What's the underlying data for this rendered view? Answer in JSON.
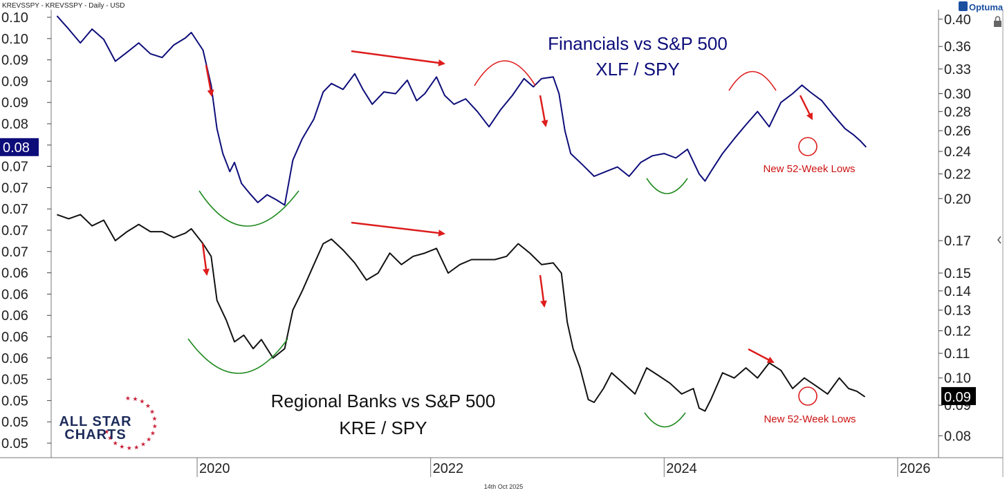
{
  "header": {
    "symbol_line": "KREVSSPY - KREVSSPY - Daily - USD",
    "brand": "Optuma"
  },
  "footer": {
    "date": "14th Oct 2025"
  },
  "logo": {
    "line1": "ALL STAR",
    "line2": "CHARTS"
  },
  "colors": {
    "financials": "#0d0d7a",
    "regional": "#111111",
    "arrow": "#dd1c1c",
    "arc_green": "#1f8a1f",
    "arc_red": "#dd1c1c"
  },
  "chart_data": {
    "type": "line",
    "x_ticks": [
      "2020",
      "2022",
      "2024",
      "2026"
    ],
    "x_domain": [
      2018.75,
      2026.35
    ],
    "left_axis": {
      "ticks": [
        "0.10",
        "0.10",
        "0.09",
        "0.09",
        "0.09",
        "0.08",
        "0.08",
        "0.07",
        "0.07",
        "0.07",
        "0.07",
        "0.07",
        "0.06",
        "0.06",
        "0.06",
        "0.06",
        "0.06",
        "0.05",
        "0.05",
        "0.05",
        "0.05"
      ],
      "highlight": "0.08"
    },
    "right_axis": {
      "scale": "log",
      "ticks": [
        0.4,
        0.36,
        0.33,
        0.3,
        0.28,
        0.26,
        0.24,
        0.22,
        0.2,
        0.17,
        0.15,
        0.14,
        0.13,
        0.12,
        0.11,
        0.1,
        0.09,
        0.08
      ],
      "tick_labels": [
        "0.40",
        "0.36",
        "0.33",
        "0.30",
        "0.28",
        "0.26",
        "0.24",
        "0.22",
        "0.20",
        "0.17",
        "0.15",
        "0.14",
        "0.13",
        "0.12",
        "0.11",
        "0.10",
        "0.09",
        "0.08"
      ],
      "highlight": "0.09",
      "ylim": [
        0.0735,
        0.415
      ]
    },
    "series": [
      {
        "key": "financials",
        "points": [
          [
            2018.8,
            0.405
          ],
          [
            2018.9,
            0.385
          ],
          [
            2019.0,
            0.365
          ],
          [
            2019.1,
            0.385
          ],
          [
            2019.2,
            0.37
          ],
          [
            2019.3,
            0.34
          ],
          [
            2019.4,
            0.352
          ],
          [
            2019.5,
            0.365
          ],
          [
            2019.6,
            0.35
          ],
          [
            2019.7,
            0.345
          ],
          [
            2019.8,
            0.362
          ],
          [
            2019.9,
            0.372
          ],
          [
            2019.95,
            0.38
          ],
          [
            2020.05,
            0.355
          ],
          [
            2020.12,
            0.31
          ],
          [
            2020.17,
            0.262
          ],
          [
            2020.22,
            0.238
          ],
          [
            2020.28,
            0.222
          ],
          [
            2020.32,
            0.23
          ],
          [
            2020.38,
            0.212
          ],
          [
            2020.45,
            0.204
          ],
          [
            2020.52,
            0.197
          ],
          [
            2020.6,
            0.203
          ],
          [
            2020.68,
            0.199
          ],
          [
            2020.75,
            0.195
          ],
          [
            2020.82,
            0.232
          ],
          [
            2020.9,
            0.252
          ],
          [
            2021.0,
            0.272
          ],
          [
            2021.08,
            0.302
          ],
          [
            2021.15,
            0.312
          ],
          [
            2021.25,
            0.305
          ],
          [
            2021.35,
            0.324
          ],
          [
            2021.42,
            0.305
          ],
          [
            2021.5,
            0.288
          ],
          [
            2021.6,
            0.302
          ],
          [
            2021.7,
            0.3
          ],
          [
            2021.8,
            0.316
          ],
          [
            2021.88,
            0.292
          ],
          [
            2021.95,
            0.3
          ],
          [
            2022.05,
            0.32
          ],
          [
            2022.12,
            0.298
          ],
          [
            2022.2,
            0.288
          ],
          [
            2022.3,
            0.294
          ],
          [
            2022.4,
            0.28
          ],
          [
            2022.5,
            0.264
          ],
          [
            2022.6,
            0.282
          ],
          [
            2022.7,
            0.298
          ],
          [
            2022.8,
            0.318
          ],
          [
            2022.88,
            0.308
          ],
          [
            2022.95,
            0.318
          ],
          [
            2023.05,
            0.32
          ],
          [
            2023.1,
            0.3
          ],
          [
            2023.15,
            0.26
          ],
          [
            2023.2,
            0.238
          ],
          [
            2023.3,
            0.228
          ],
          [
            2023.4,
            0.218
          ],
          [
            2023.5,
            0.222
          ],
          [
            2023.6,
            0.226
          ],
          [
            2023.7,
            0.218
          ],
          [
            2023.8,
            0.23
          ],
          [
            2023.9,
            0.236
          ],
          [
            2024.0,
            0.238
          ],
          [
            2024.1,
            0.234
          ],
          [
            2024.2,
            0.242
          ],
          [
            2024.3,
            0.22
          ],
          [
            2024.35,
            0.214
          ],
          [
            2024.4,
            0.222
          ],
          [
            2024.5,
            0.238
          ],
          [
            2024.6,
            0.252
          ],
          [
            2024.7,
            0.266
          ],
          [
            2024.8,
            0.28
          ],
          [
            2024.9,
            0.264
          ],
          [
            2025.0,
            0.29
          ],
          [
            2025.1,
            0.3
          ],
          [
            2025.18,
            0.31
          ],
          [
            2025.25,
            0.302
          ],
          [
            2025.35,
            0.292
          ],
          [
            2025.45,
            0.276
          ],
          [
            2025.55,
            0.262
          ],
          [
            2025.62,
            0.256
          ],
          [
            2025.68,
            0.25
          ],
          [
            2025.73,
            0.244
          ]
        ]
      },
      {
        "key": "regional",
        "points": [
          [
            2018.8,
            0.188
          ],
          [
            2018.9,
            0.185
          ],
          [
            2019.0,
            0.188
          ],
          [
            2019.1,
            0.18
          ],
          [
            2019.2,
            0.184
          ],
          [
            2019.3,
            0.17
          ],
          [
            2019.4,
            0.176
          ],
          [
            2019.5,
            0.181
          ],
          [
            2019.6,
            0.176
          ],
          [
            2019.7,
            0.176
          ],
          [
            2019.8,
            0.172
          ],
          [
            2019.9,
            0.175
          ],
          [
            2019.95,
            0.178
          ],
          [
            2020.05,
            0.168
          ],
          [
            2020.12,
            0.16
          ],
          [
            2020.17,
            0.135
          ],
          [
            2020.25,
            0.125
          ],
          [
            2020.32,
            0.115
          ],
          [
            2020.4,
            0.118
          ],
          [
            2020.48,
            0.112
          ],
          [
            2020.55,
            0.116
          ],
          [
            2020.65,
            0.108
          ],
          [
            2020.75,
            0.112
          ],
          [
            2020.82,
            0.13
          ],
          [
            2020.9,
            0.14
          ],
          [
            2021.0,
            0.155
          ],
          [
            2021.08,
            0.168
          ],
          [
            2021.15,
            0.171
          ],
          [
            2021.25,
            0.164
          ],
          [
            2021.35,
            0.156
          ],
          [
            2021.45,
            0.146
          ],
          [
            2021.55,
            0.15
          ],
          [
            2021.65,
            0.162
          ],
          [
            2021.75,
            0.155
          ],
          [
            2021.85,
            0.16
          ],
          [
            2021.95,
            0.162
          ],
          [
            2022.05,
            0.165
          ],
          [
            2022.15,
            0.15
          ],
          [
            2022.25,
            0.155
          ],
          [
            2022.35,
            0.158
          ],
          [
            2022.45,
            0.158
          ],
          [
            2022.55,
            0.158
          ],
          [
            2022.65,
            0.16
          ],
          [
            2022.75,
            0.168
          ],
          [
            2022.85,
            0.162
          ],
          [
            2022.95,
            0.155
          ],
          [
            2023.05,
            0.156
          ],
          [
            2023.12,
            0.15
          ],
          [
            2023.17,
            0.124
          ],
          [
            2023.22,
            0.112
          ],
          [
            2023.28,
            0.104
          ],
          [
            2023.35,
            0.092
          ],
          [
            2023.4,
            0.091
          ],
          [
            2023.48,
            0.096
          ],
          [
            2023.55,
            0.102
          ],
          [
            2023.65,
            0.098
          ],
          [
            2023.75,
            0.094
          ],
          [
            2023.85,
            0.104
          ],
          [
            2023.95,
            0.101
          ],
          [
            2024.05,
            0.098
          ],
          [
            2024.15,
            0.094
          ],
          [
            2024.25,
            0.096
          ],
          [
            2024.3,
            0.089
          ],
          [
            2024.35,
            0.088
          ],
          [
            2024.4,
            0.092
          ],
          [
            2024.5,
            0.102
          ],
          [
            2024.6,
            0.1
          ],
          [
            2024.7,
            0.104
          ],
          [
            2024.8,
            0.1
          ],
          [
            2024.9,
            0.106
          ],
          [
            2025.0,
            0.103
          ],
          [
            2025.1,
            0.096
          ],
          [
            2025.2,
            0.1
          ],
          [
            2025.3,
            0.097
          ],
          [
            2025.4,
            0.094
          ],
          [
            2025.5,
            0.1
          ],
          [
            2025.58,
            0.096
          ],
          [
            2025.65,
            0.095
          ],
          [
            2025.72,
            0.093
          ]
        ]
      }
    ],
    "annotations": {
      "financials_title": "Financials vs S&P 500",
      "financials_subtitle": "XLF / SPY",
      "regional_title": "Regional Banks vs S&P 500",
      "regional_subtitle": "KRE / SPY",
      "new_lows_label": "New 52-Week Lows"
    }
  }
}
